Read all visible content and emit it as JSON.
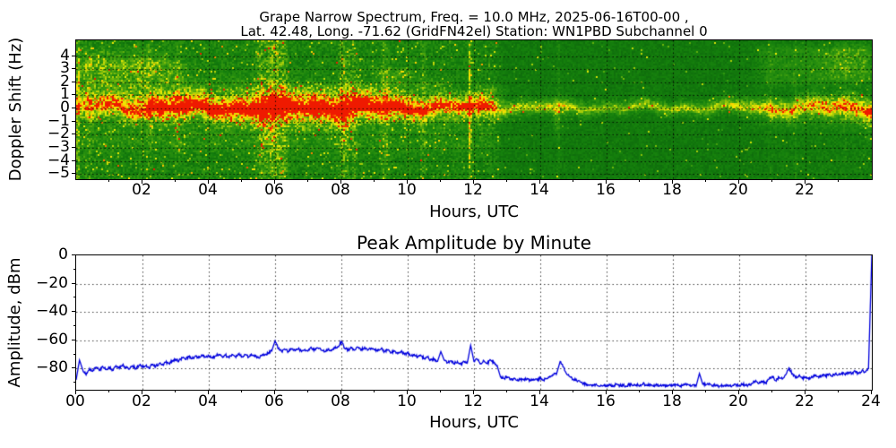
{
  "header": {
    "title_line1": "Grape Narrow Spectrum, Freq. = 10.0 MHz, 2025-06-16T00-00 ,",
    "title_line2": "Lat.  42.48, Long. -71.62 (GridFN42el) Station: WN1PBD Subchannel 0"
  },
  "chart_data": [
    {
      "type": "heatmap",
      "title": "Grape Narrow Spectrum (Doppler spectrogram)",
      "xlabel": "Hours, UTC",
      "ylabel": "Doppler Shift (Hz)",
      "xlim": [
        0,
        24
      ],
      "ylim": [
        -5.4,
        5.2
      ],
      "grid": "dotted black, horizontal every 1 Hz, vertical every 2 h",
      "xtick_values": [
        2,
        4,
        6,
        8,
        10,
        12,
        14,
        16,
        18,
        20,
        22
      ],
      "xtick_labels": [
        "02",
        "04",
        "06",
        "08",
        "10",
        "12",
        "14",
        "16",
        "18",
        "20",
        "22"
      ],
      "ytick_values": [
        4,
        3,
        2,
        1,
        0,
        -1,
        -2,
        -3,
        -4,
        -5
      ],
      "ytick_labels": [
        "4",
        "3",
        "2",
        "1",
        "0",
        "−1",
        "−2",
        "−3",
        "−4",
        "−5"
      ],
      "colormap_stops": [
        [
          0.0,
          "#07570a"
        ],
        [
          0.3,
          "#15800d"
        ],
        [
          0.5,
          "#33970f"
        ],
        [
          0.62,
          "#68b20c"
        ],
        [
          0.74,
          "#b5d208"
        ],
        [
          0.82,
          "#eeee04"
        ],
        [
          0.9,
          "#ffd000"
        ],
        [
          0.95,
          "#ff8c00"
        ],
        [
          1.0,
          "#ef1a00"
        ]
      ],
      "background": {
        "base": [
          [
            0,
            0.34
          ],
          [
            12.6,
            0.32
          ],
          [
            12.9,
            0.25
          ],
          [
            20,
            0.24
          ],
          [
            21,
            0.26
          ],
          [
            24,
            0.28
          ]
        ],
        "noise": [
          [
            0,
            0.3
          ],
          [
            12.6,
            0.28
          ],
          [
            12.9,
            0.16
          ],
          [
            20,
            0.16
          ],
          [
            24,
            0.2
          ]
        ],
        "speckle": [
          [
            0,
            0.05
          ],
          [
            12.6,
            0.04
          ],
          [
            12.9,
            0.012
          ],
          [
            20,
            0.012
          ],
          [
            24,
            0.02
          ]
        ]
      },
      "band": {
        "center_hz": 0.0,
        "amp": [
          [
            0,
            0.55
          ],
          [
            1,
            0.62
          ],
          [
            2,
            0.72
          ],
          [
            2.5,
            0.8
          ],
          [
            3.5,
            0.76
          ],
          [
            5,
            0.8
          ],
          [
            6,
            0.85
          ],
          [
            7,
            0.8
          ],
          [
            8,
            0.85
          ],
          [
            9,
            0.8
          ],
          [
            10,
            0.76
          ],
          [
            10.8,
            0.7
          ],
          [
            11.5,
            0.72
          ],
          [
            12.3,
            0.66
          ],
          [
            12.8,
            0.55
          ],
          [
            13.5,
            0.48
          ],
          [
            14.5,
            0.52
          ],
          [
            15.5,
            0.44
          ],
          [
            17,
            0.44
          ],
          [
            19,
            0.46
          ],
          [
            20,
            0.52
          ],
          [
            21,
            0.62
          ],
          [
            22,
            0.66
          ],
          [
            23,
            0.72
          ],
          [
            24,
            0.74
          ]
        ],
        "width": [
          [
            0,
            0.45
          ],
          [
            2,
            0.5
          ],
          [
            5,
            0.6
          ],
          [
            6,
            0.7
          ],
          [
            8,
            0.65
          ],
          [
            10,
            0.5
          ],
          [
            12,
            0.45
          ],
          [
            13,
            0.32
          ],
          [
            16,
            0.28
          ],
          [
            19,
            0.3
          ],
          [
            21,
            0.4
          ],
          [
            24,
            0.5
          ]
        ],
        "core": [
          [
            0,
            0
          ],
          [
            1.9,
            0.02
          ],
          [
            2.2,
            0.28
          ],
          [
            3,
            0.34
          ],
          [
            5,
            0.3
          ],
          [
            6,
            0.32
          ],
          [
            7,
            0.34
          ],
          [
            8,
            0.3
          ],
          [
            9,
            0.32
          ],
          [
            9.6,
            0.26
          ],
          [
            10.2,
            0.3
          ],
          [
            10.6,
            0.18
          ],
          [
            11.2,
            0.1
          ],
          [
            11.5,
            0.16
          ],
          [
            12.1,
            0.1
          ],
          [
            12.5,
            0.14
          ],
          [
            12.8,
            0
          ],
          [
            24,
            0
          ]
        ]
      },
      "clouds": [
        [
          0,
          3.3,
          0.5,
          3.7,
          0.26
        ],
        [
          0.2,
          2.6,
          3.0,
          4.6,
          0.12
        ],
        [
          3.3,
          5.4,
          0.5,
          2.3,
          0.13
        ],
        [
          6.4,
          9.0,
          0.5,
          2.1,
          0.16
        ],
        [
          9.0,
          10.15,
          0.5,
          3.1,
          0.2
        ],
        [
          10.3,
          11.3,
          0.5,
          2.3,
          0.13
        ],
        [
          11.9,
          12.85,
          0.2,
          1.7,
          0.26
        ],
        [
          20.6,
          24,
          1.8,
          4.7,
          0.17
        ],
        [
          22.6,
          24,
          2.3,
          4.9,
          0.12
        ],
        [
          0,
          12.7,
          -3.2,
          -0.3,
          0.09
        ],
        [
          20.5,
          24,
          -1.6,
          -0.2,
          0.1
        ]
      ],
      "streaks": [
        [
          0.06,
          0.03,
          0.4
        ],
        [
          0.38,
          0.06,
          0.16
        ],
        [
          2.2,
          0.05,
          0.14
        ],
        [
          3.05,
          0.05,
          0.14
        ],
        [
          5.6,
          0.12,
          0.28
        ],
        [
          5.98,
          0.15,
          0.36
        ],
        [
          6.28,
          0.08,
          0.24
        ],
        [
          8.08,
          0.12,
          0.28
        ],
        [
          8.38,
          0.07,
          0.2
        ],
        [
          9.32,
          0.08,
          0.2
        ],
        [
          10.48,
          0.06,
          0.16
        ],
        [
          11.88,
          0.025,
          0.6
        ],
        [
          14.55,
          0.04,
          0.12
        ],
        [
          20.95,
          0.03,
          0.1
        ],
        [
          21.7,
          0.03,
          0.1
        ],
        [
          23.2,
          0.03,
          0.1
        ]
      ],
      "plumes": [
        [
          2.6,
          0.06,
          -2.2,
          0.3
        ],
        [
          3.35,
          0.05,
          -1.8,
          0.26
        ],
        [
          5.0,
          0.05,
          -2.0,
          0.26
        ],
        [
          5.9,
          0.08,
          -2.6,
          0.3
        ],
        [
          7.15,
          0.06,
          -2.2,
          0.26
        ],
        [
          8.1,
          0.07,
          -2.4,
          0.26
        ],
        [
          10.0,
          0.05,
          -1.6,
          0.22
        ],
        [
          12.15,
          0.05,
          -1.6,
          0.26
        ],
        [
          14.5,
          0.09,
          -2.3,
          0.4
        ],
        [
          14.78,
          0.05,
          -1.5,
          0.25
        ],
        [
          23.9,
          0.05,
          -3.0,
          0.35
        ]
      ]
    },
    {
      "type": "line",
      "title": "Peak Amplitude by Minute",
      "xlabel": "Hours, UTC",
      "ylabel": "Amplitude, dBm",
      "xlim": [
        0,
        24
      ],
      "ylim": [
        -95,
        0
      ],
      "grid": "dotted, at major ticks",
      "legend": "none",
      "line_color": "#0000dd",
      "xtick_values": [
        0,
        2,
        4,
        6,
        8,
        10,
        12,
        14,
        16,
        18,
        20,
        22,
        24
      ],
      "xtick_labels": [
        "00",
        "02",
        "04",
        "06",
        "08",
        "10",
        "12",
        "14",
        "16",
        "18",
        "20",
        "22",
        "24"
      ],
      "ytick_values": [
        0,
        -20,
        -40,
        -60,
        -80
      ],
      "ytick_labels": [
        "0",
        "−20",
        "−40",
        "−60",
        "−80"
      ],
      "x_step_hours": 0.1,
      "y": [
        -88,
        -74,
        -81,
        -84.5,
        -80,
        -82,
        -79,
        -81.5,
        -78.5,
        -80.5,
        -79,
        -81,
        -78,
        -80,
        -77.5,
        -79.5,
        -80.5,
        -78,
        -80,
        -77.5,
        -79,
        -78,
        -80,
        -77,
        -78.5,
        -76.5,
        -77.5,
        -75.5,
        -76.5,
        -74.5,
        -73.5,
        -74.5,
        -72.5,
        -73.5,
        -71.5,
        -73,
        -71,
        -72.5,
        -70.5,
        -72,
        -71,
        -72.5,
        -71,
        -70,
        -71.5,
        -70.5,
        -72,
        -70,
        -71.5,
        -70,
        -71.5,
        -70,
        -72,
        -70.5,
        -71.5,
        -72.5,
        -71,
        -70,
        -69,
        -67.5,
        -60.5,
        -66,
        -68,
        -66.5,
        -68,
        -66,
        -67.5,
        -66,
        -68,
        -66.5,
        -67.5,
        -65.5,
        -67,
        -65.5,
        -67,
        -68,
        -66,
        -67.5,
        -65.5,
        -64.5,
        -61,
        -65.5,
        -67,
        -65.5,
        -67,
        -65,
        -66.5,
        -65,
        -67,
        -65.5,
        -66.5,
        -67.5,
        -66,
        -68,
        -67,
        -69,
        -67.5,
        -69.5,
        -68,
        -70,
        -69,
        -71,
        -70,
        -72,
        -71,
        -73,
        -72,
        -74,
        -73,
        -75,
        -68,
        -74,
        -76,
        -74.5,
        -76.5,
        -75,
        -77,
        -75,
        -76,
        -63.5,
        -75,
        -73.5,
        -76.5,
        -74.5,
        -76.5,
        -74,
        -76,
        -78,
        -86,
        -87,
        -86,
        -88,
        -87,
        -88.5,
        -87.5,
        -88,
        -87,
        -88.5,
        -87.5,
        -88,
        -87,
        -88,
        -87,
        -86,
        -84.5,
        -83,
        -75,
        -79,
        -84,
        -86,
        -87.5,
        -88.5,
        -89.5,
        -90.5,
        -91,
        -91.5,
        -92,
        -91.5,
        -92.5,
        -92,
        -92.5,
        -91.5,
        -92.5,
        -91,
        -92,
        -91.5,
        -92.5,
        -91,
        -92,
        -91.5,
        -92,
        -90.5,
        -92,
        -91.5,
        -92.5,
        -91,
        -92,
        -91.5,
        -92.5,
        -91.5,
        -92,
        -91.5,
        -92.5,
        -92,
        -91,
        -92,
        -91.5,
        -92.5,
        -83.5,
        -91,
        -91.5,
        -90.5,
        -92,
        -91.5,
        -92.5,
        -92,
        -91.5,
        -92.5,
        -92,
        -91.5,
        -92,
        -91,
        -92,
        -91.5,
        -90.5,
        -88.5,
        -90.5,
        -89,
        -90.5,
        -87.5,
        -85.5,
        -88.5,
        -86,
        -87.5,
        -84.5,
        -79.5,
        -83.5,
        -86.5,
        -85,
        -87,
        -86,
        -87.5,
        -86,
        -85,
        -86.5,
        -84.5,
        -85.5,
        -84,
        -85.5,
        -83.5,
        -84.5,
        -83,
        -84.5,
        -82.5,
        -83.5,
        -82,
        -83.5,
        -81.5,
        -82.5,
        -80,
        0
      ]
    }
  ]
}
